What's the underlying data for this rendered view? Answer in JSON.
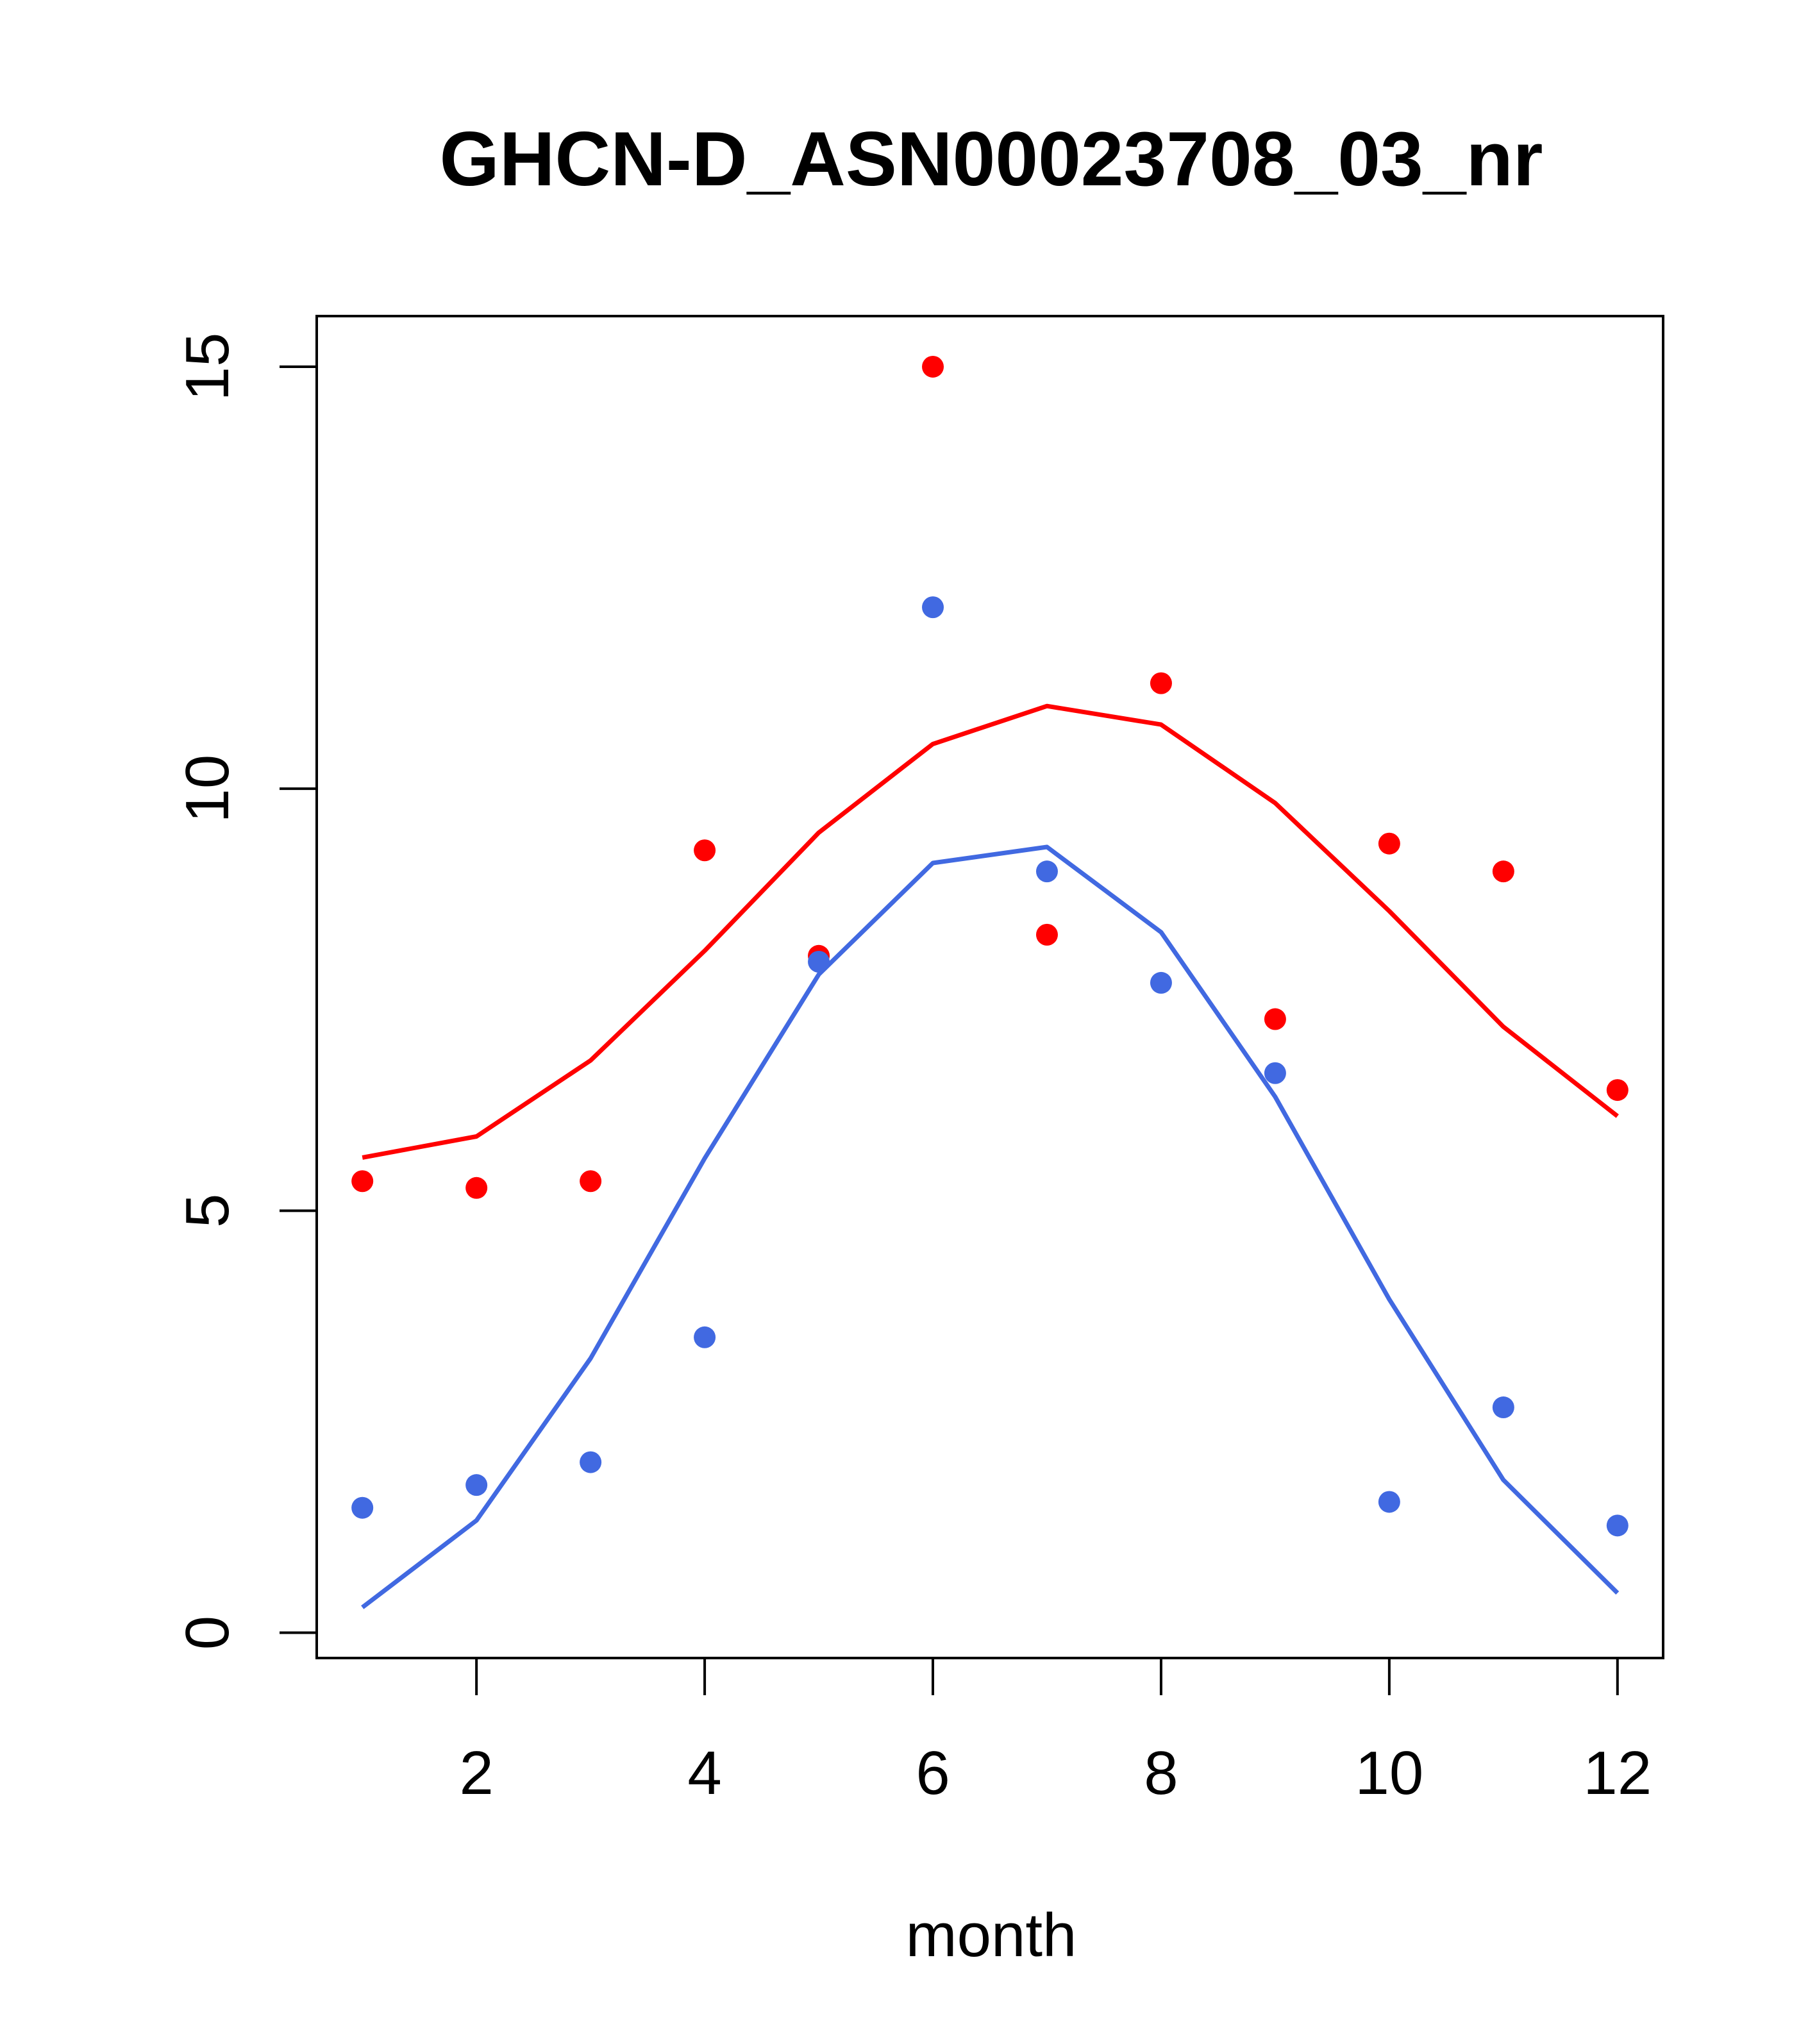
{
  "chart_data": {
    "type": "scatter",
    "title": "GHCN-D_ASN00023708_03_nr",
    "xlabel": "month",
    "ylabel": "",
    "xlim": [
      0.6,
      12.4
    ],
    "ylim": [
      -0.3,
      15.6
    ],
    "x_ticks": [
      2,
      4,
      6,
      8,
      10,
      12
    ],
    "y_ticks": [
      0,
      5,
      10,
      15
    ],
    "grid": false,
    "legend": "none",
    "series": [
      {
        "color": "#ff0000",
        "x": [
          1,
          2,
          3,
          4,
          5,
          6,
          7,
          8,
          9,
          10,
          11,
          12
        ],
        "points": [
          5.35,
          5.27,
          5.35,
          9.27,
          8.02,
          15.0,
          8.27,
          11.25,
          7.27,
          9.35,
          9.02,
          6.43
        ],
        "line": [
          5.63,
          5.88,
          6.78,
          8.08,
          9.48,
          10.53,
          10.98,
          10.76,
          9.83,
          8.55,
          7.18,
          6.12
        ]
      },
      {
        "color": "#4169e1",
        "x": [
          1,
          2,
          3,
          4,
          5,
          6,
          7,
          8,
          9,
          10,
          11,
          12
        ],
        "points": [
          1.48,
          1.75,
          2.02,
          3.5,
          7.95,
          12.15,
          9.02,
          7.7,
          6.63,
          1.55,
          2.67,
          1.27
        ],
        "line": [
          0.3,
          1.33,
          3.25,
          5.62,
          7.8,
          9.12,
          9.31,
          8.3,
          6.35,
          3.95,
          1.81,
          0.47
        ]
      }
    ]
  }
}
